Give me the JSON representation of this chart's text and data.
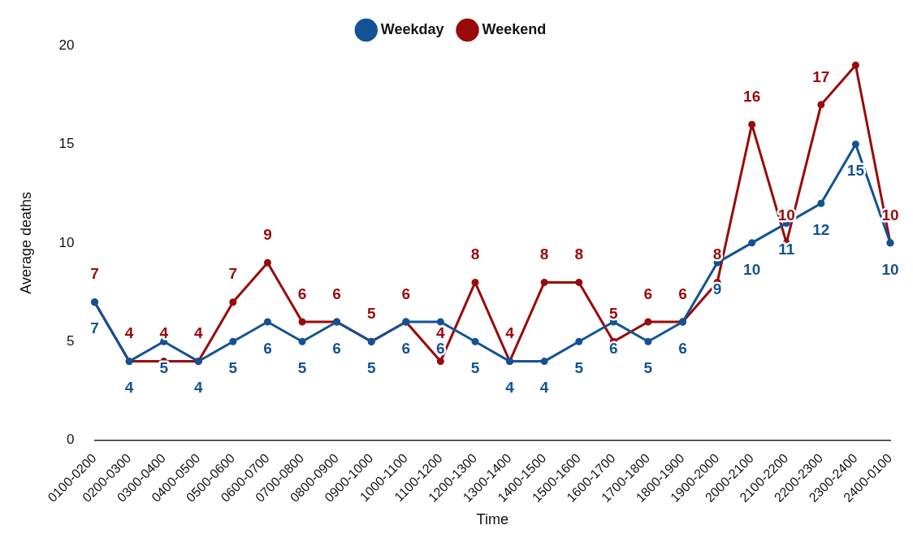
{
  "chart_data": {
    "type": "line",
    "xlabel": "Time",
    "ylabel": "Average deaths",
    "categories": [
      "0100-0200",
      "0200-0300",
      "0300-0400",
      "0400-0500",
      "0500-0600",
      "0600-0700",
      "0700-0800",
      "0800-0900",
      "0900-1000",
      "1000-1100",
      "1100-1200",
      "1200-1300",
      "1300-1400",
      "1400-1500",
      "1500-1600",
      "1600-1700",
      "1700-1800",
      "1800-1900",
      "1900-2000",
      "2000-2100",
      "2100-2200",
      "2200-2300",
      "2300-2400",
      "2400-0100"
    ],
    "series": [
      {
        "name": "Weekday",
        "color": "#135394",
        "values": [
          7,
          4,
          5,
          4,
          5,
          6,
          5,
          6,
          5,
          6,
          6,
          5,
          4,
          4,
          5,
          6,
          5,
          6,
          9,
          10,
          11,
          12,
          15,
          10
        ],
        "value_labels": [
          "7",
          "4",
          "5",
          "4",
          "5",
          "6",
          "5",
          "6",
          "5",
          "6",
          "6",
          "5",
          "4",
          "4",
          "5",
          "6",
          "5",
          "6",
          "9",
          "10",
          "11",
          "12",
          "15",
          "10"
        ]
      },
      {
        "name": "Weekend",
        "color": "#9a0a0a",
        "values": [
          7,
          4,
          4,
          4,
          7,
          9,
          6,
          6,
          5,
          6,
          4,
          8,
          4,
          8,
          8,
          5,
          6,
          6,
          8,
          16,
          10,
          17,
          19,
          10
        ],
        "value_labels": [
          "7",
          "4",
          "4",
          "4",
          "7",
          "9",
          "6",
          "6",
          "5",
          "6",
          "4",
          "8",
          "4",
          "8",
          "8",
          "5",
          "6",
          "6",
          "8",
          "16",
          "10",
          "17",
          null,
          "10"
        ]
      }
    ],
    "ylim": [
      0,
      20
    ],
    "yticks": [
      0,
      5,
      10,
      15,
      20
    ],
    "grid": false,
    "legend": "top",
    "marker": "circle",
    "line_style": "solid"
  }
}
